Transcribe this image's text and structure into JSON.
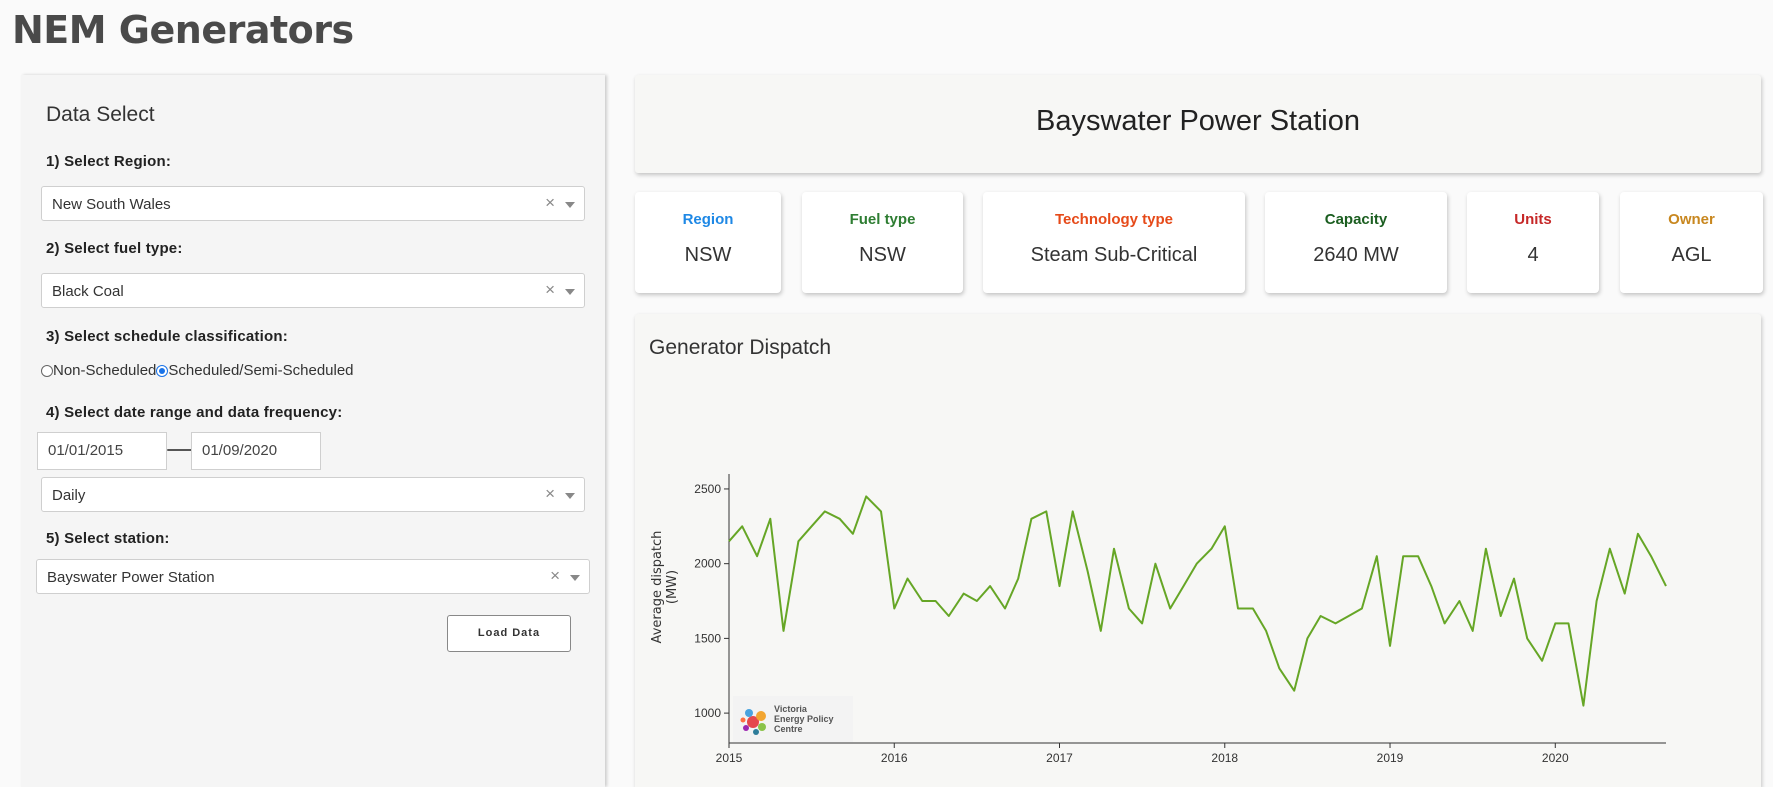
{
  "app": {
    "title": "NEM Generators"
  },
  "sidebar": {
    "title": "Data Select",
    "step1_label": "1) Select Region:",
    "region_value": "New South Wales",
    "step2_label": "2) Select fuel type:",
    "fuel_value": "Black Coal",
    "step3_label": "3) Select schedule classification:",
    "radio_options": [
      "Non-Scheduled",
      "Scheduled/Semi-Scheduled"
    ],
    "radio_selected": "Scheduled/Semi-Scheduled",
    "step4_label": "4) Select date range and data frequency:",
    "date_start": "01/01/2015",
    "date_end": "01/09/2020",
    "frequency_value": "Daily",
    "step5_label": "5) Select station:",
    "station_value": "Bayswater Power Station",
    "load_button": "Load Data",
    "clear_symbol": "×"
  },
  "header": {
    "station_title": "Bayswater Power Station"
  },
  "info_cards": [
    {
      "label": "Region",
      "value": "NSW",
      "color": "#1e88e5"
    },
    {
      "label": "Fuel type",
      "value": "NSW",
      "color": "#2e7d32"
    },
    {
      "label": "Technology type",
      "value": "Steam Sub-Critical",
      "color": "#e64a19"
    },
    {
      "label": "Capacity",
      "value": "2640 MW",
      "color": "#1b5e20"
    },
    {
      "label": "Units",
      "value": "4",
      "color": "#c62828"
    },
    {
      "label": "Owner",
      "value": "AGL",
      "color": "#c8871f"
    }
  ],
  "chart_panel": {
    "title": "Generator Dispatch",
    "logo_text": [
      "Victoria",
      "Energy Policy",
      "Centre"
    ]
  },
  "chart_data": {
    "type": "line",
    "ylabel": "Average dispatch (MW)",
    "xlabel": "",
    "xlim": [
      2015.0,
      2020.67
    ],
    "ylim": [
      800,
      2600
    ],
    "yticks": [
      1000,
      1500,
      2000,
      2500
    ],
    "xticks": [
      "2015",
      "2016",
      "2017",
      "2018",
      "2019",
      "2020"
    ],
    "line_color": "#66a626",
    "series": [
      {
        "x": [
          2015.0,
          2015.08,
          2015.17,
          2015.25,
          2015.33,
          2015.42,
          2015.5,
          2015.58,
          2015.67,
          2015.75,
          2015.83,
          2015.92,
          2016.0,
          2016.08,
          2016.17,
          2016.25,
          2016.33,
          2016.42,
          2016.5,
          2016.58,
          2016.67,
          2016.75,
          2016.83,
          2016.92,
          2017.0,
          2017.08,
          2017.17,
          2017.25,
          2017.33,
          2017.42,
          2017.5,
          2017.58,
          2017.67,
          2017.75,
          2017.83,
          2017.92,
          2018.0,
          2018.08,
          2018.17,
          2018.25,
          2018.33,
          2018.42,
          2018.5,
          2018.58,
          2018.67,
          2018.75,
          2018.83,
          2018.92,
          2019.0,
          2019.08,
          2019.17,
          2019.25,
          2019.33,
          2019.42,
          2019.5,
          2019.58,
          2019.67,
          2019.75,
          2019.83,
          2019.92,
          2020.0,
          2020.08,
          2020.17,
          2020.25,
          2020.33,
          2020.42,
          2020.5,
          2020.58,
          2020.67
        ],
        "y": [
          2150,
          2250,
          2050,
          2300,
          1550,
          2150,
          2250,
          2350,
          2300,
          2200,
          2450,
          2350,
          1700,
          1900,
          1750,
          1750,
          1650,
          1800,
          1750,
          1850,
          1700,
          1900,
          2300,
          2350,
          1850,
          2350,
          1950,
          1550,
          2100,
          1700,
          1600,
          2000,
          1700,
          1850,
          2000,
          2100,
          2250,
          1700,
          1700,
          1550,
          1300,
          1150,
          1500,
          1650,
          1600,
          1650,
          1700,
          2050,
          1450,
          2050,
          2050,
          1850,
          1600,
          1750,
          1550,
          2100,
          1650,
          1900,
          1500,
          1350,
          1600,
          1600,
          1050,
          1750,
          2100,
          1800,
          2200,
          2050,
          1850
        ]
      }
    ]
  }
}
